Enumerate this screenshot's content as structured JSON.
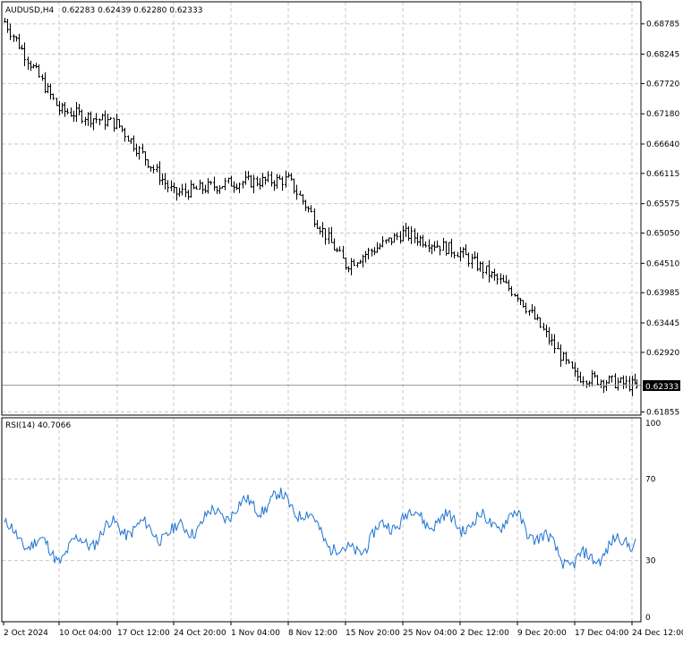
{
  "header": {
    "symbol": "AUDUSD,H4",
    "ohlc": "0.62283 0.62439 0.62280 0.62333"
  },
  "rsi_header": {
    "label": "RSI(14) 40.7066"
  },
  "price_axis": {
    "ticks": [
      "0.68785",
      "0.68245",
      "0.67720",
      "0.67180",
      "0.66640",
      "0.66115",
      "0.65575",
      "0.65050",
      "0.64510",
      "0.63985",
      "0.63445",
      "0.62920",
      "0.62333",
      "0.61855"
    ],
    "current_price_label": "0.62333"
  },
  "rsi_axis": {
    "ticks": [
      "100",
      "70",
      "30",
      "0"
    ]
  },
  "time_axis": {
    "labels": [
      "2 Oct 2024",
      "10 Oct 04:00",
      "17 Oct 12:00",
      "24 Oct 20:00",
      "1 Nov 04:00",
      "8 Nov 12:00",
      "15 Nov 20:00",
      "25 Nov 04:00",
      "2 Dec 12:00",
      "9 Dec 20:00",
      "17 Dec 04:00",
      "24 Dec 12:00"
    ]
  },
  "colors": {
    "bars": "#000000",
    "rsi": "#1e73d2",
    "grid": "#c8c8c8",
    "background": "#ffffff"
  },
  "chart_data": [
    {
      "type": "ohlc",
      "symbol": "AUDUSD",
      "timeframe": "H4",
      "ylim": [
        0.618,
        0.6918
      ],
      "grid": true,
      "x": [
        "2 Oct 2024",
        "10 Oct 04:00",
        "17 Oct 12:00",
        "24 Oct 20:00",
        "1 Nov 04:00",
        "8 Nov 12:00",
        "15 Nov 20:00",
        "25 Nov 04:00",
        "2 Dec 12:00",
        "9 Dec 20:00",
        "17 Dec 04:00",
        "24 Dec 12:00"
      ],
      "close_path": [
        {
          "x": "2 Oct 2024",
          "close": 0.6885
        },
        {
          "x": "10 Oct 04:00",
          "close": 0.6725
        },
        {
          "x": "17 Oct 12:00",
          "close": 0.67
        },
        {
          "x": "24 Oct 20:00",
          "close": 0.6575
        },
        {
          "x": "1 Nov 04:00",
          "close": 0.6595
        },
        {
          "x": "8 Nov 12:00",
          "close": 0.66
        },
        {
          "x": "15 Nov 20:00",
          "close": 0.6448
        },
        {
          "x": "25 Nov 04:00",
          "close": 0.6505
        },
        {
          "x": "2 Dec 12:00",
          "close": 0.647
        },
        {
          "x": "9 Dec 20:00",
          "close": 0.6395
        },
        {
          "x": "17 Dec 04:00",
          "close": 0.625
        },
        {
          "x": "24 Dec 12:00",
          "close": 0.62333
        }
      ],
      "last": {
        "open": 0.62283,
        "high": 0.62439,
        "low": 0.6228,
        "close": 0.62333
      }
    },
    {
      "type": "line",
      "indicator": "RSI(14)",
      "ylim": [
        0,
        100
      ],
      "levels": [
        70,
        30
      ],
      "last_value": 40.7066,
      "x": [
        "2 Oct 2024",
        "10 Oct 04:00",
        "17 Oct 12:00",
        "24 Oct 20:00",
        "1 Nov 04:00",
        "8 Nov 12:00",
        "15 Nov 20:00",
        "25 Nov 04:00",
        "2 Dec 12:00",
        "9 Dec 20:00",
        "17 Dec 04:00",
        "24 Dec 12:00"
      ],
      "values": [
        45,
        33,
        47,
        43,
        55,
        60,
        32,
        52,
        48,
        50,
        28,
        41
      ]
    }
  ]
}
